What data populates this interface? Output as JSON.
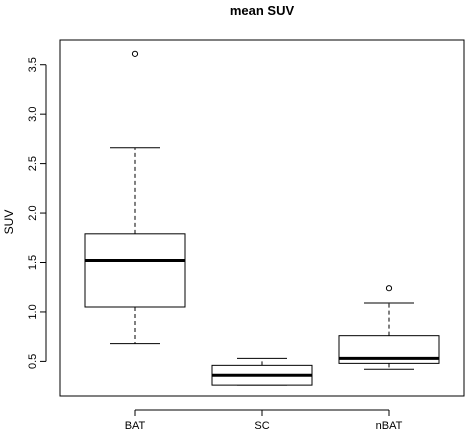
{
  "chart_data": {
    "type": "boxplot",
    "title": "mean SUV",
    "xlabel": "",
    "ylabel": "SUV",
    "categories": [
      "BAT",
      "SC",
      "nBAT"
    ],
    "ylim": [
      0.15,
      3.75
    ],
    "yticks": [
      "0.5",
      "1.0",
      "1.5",
      "2.0",
      "2.5",
      "3.0",
      "3.5"
    ],
    "boxes": [
      {
        "name": "BAT",
        "whisker_low": 0.68,
        "q1": 1.05,
        "median": 1.52,
        "q3": 1.79,
        "whisker_high": 2.66,
        "outliers": [
          3.61
        ]
      },
      {
        "name": "SC",
        "whisker_low": 0.26,
        "q1": 0.26,
        "median": 0.36,
        "q3": 0.46,
        "whisker_high": 0.53,
        "outliers": []
      },
      {
        "name": "nBAT",
        "whisker_low": 0.42,
        "q1": 0.48,
        "median": 0.53,
        "q3": 0.76,
        "whisker_high": 1.09,
        "outliers": [
          1.24
        ]
      }
    ],
    "grid": false,
    "legend": "none",
    "colors": {
      "stroke": "#000000",
      "box_fill": "#ffffff",
      "background": "#ffffff"
    }
  }
}
